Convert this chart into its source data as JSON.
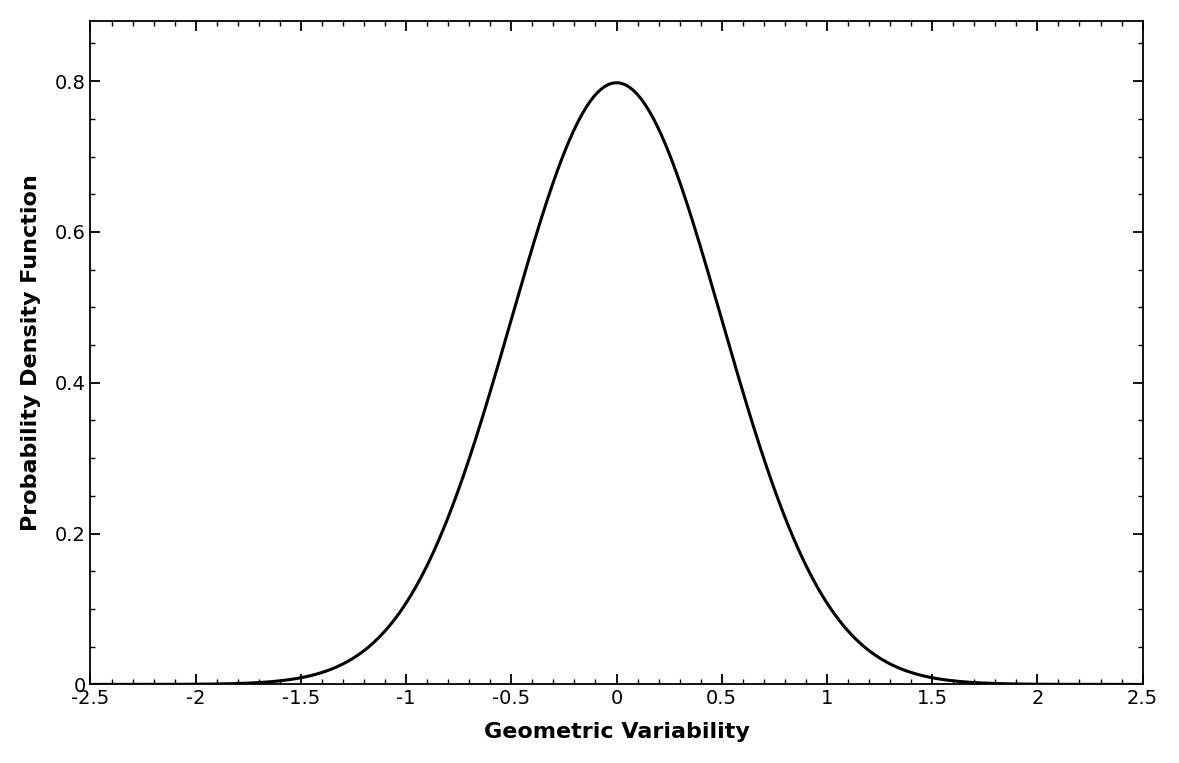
{
  "xlabel": "Geometric Variability",
  "ylabel": "Probability Density Function",
  "xlim": [
    -2.5,
    2.5
  ],
  "ylim": [
    0,
    0.88
  ],
  "xticks": [
    -2.5,
    -2,
    -1.5,
    -1,
    -0.5,
    0,
    0.5,
    1,
    1.5,
    2,
    2.5
  ],
  "yticks": [
    0,
    0.2,
    0.4,
    0.6,
    0.8
  ],
  "mean": 0.0,
  "std": 0.5,
  "line_color": "#000000",
  "line_width": 2.2,
  "background_color": "#ffffff",
  "xlabel_fontsize": 16,
  "ylabel_fontsize": 16,
  "tick_fontsize": 14,
  "xlabel_fontweight": "bold",
  "ylabel_fontweight": "bold",
  "fig_width": 11.79,
  "fig_height": 7.63
}
